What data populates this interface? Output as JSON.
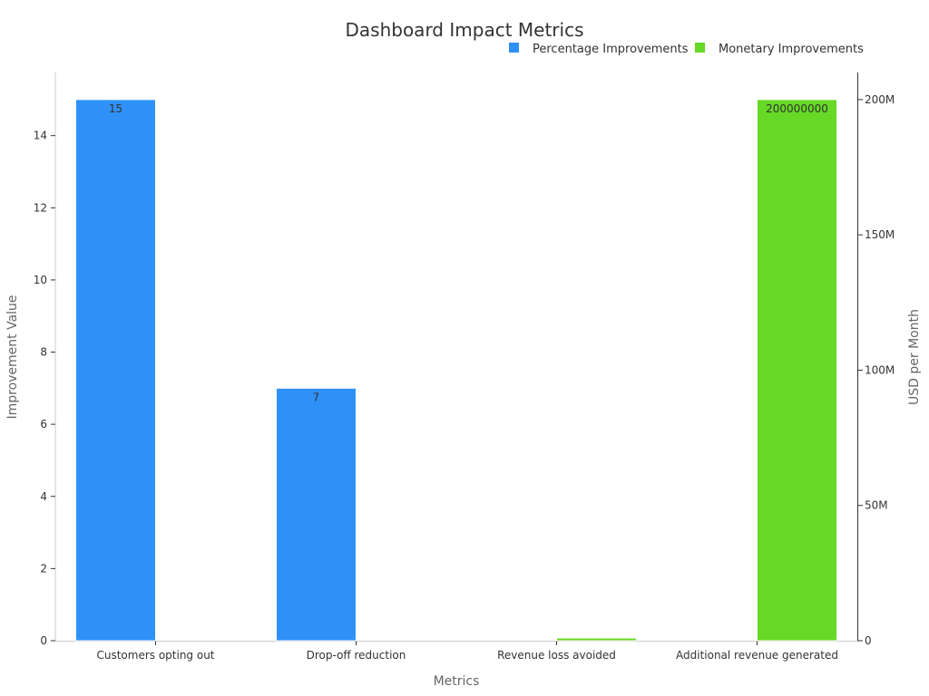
{
  "chart_data": {
    "type": "bar",
    "title": "Dashboard Impact Metrics",
    "xlabel": "Metrics",
    "ylabel": "Improvement Value",
    "y2label": "USD per Month",
    "categories": [
      "Customers opting out",
      "Drop-off reduction",
      "Revenue loss avoided",
      "Additional revenue generated"
    ],
    "series": [
      {
        "name": "Percentage Improvements",
        "axis": "left",
        "color": "#2f91f8",
        "values": [
          15,
          7,
          null,
          null
        ],
        "labels": [
          "15",
          "7",
          "",
          ""
        ]
      },
      {
        "name": "Monetary Improvements",
        "axis": "right",
        "color": "#66d926",
        "values": [
          null,
          null,
          1000000,
          200000000
        ],
        "labels": [
          "",
          "",
          "",
          "200000000"
        ]
      }
    ],
    "ylim": [
      0,
      15.75
    ],
    "y2lim": [
      0,
      210000000
    ],
    "yticks": [
      0,
      2,
      4,
      6,
      8,
      10,
      12,
      14
    ],
    "y2ticks": [
      0,
      50000000,
      100000000,
      150000000,
      200000000
    ],
    "y2ticklabels": [
      "0",
      "50M",
      "100M",
      "150M",
      "200M"
    ],
    "legend_position": "top-right",
    "grid": false
  }
}
